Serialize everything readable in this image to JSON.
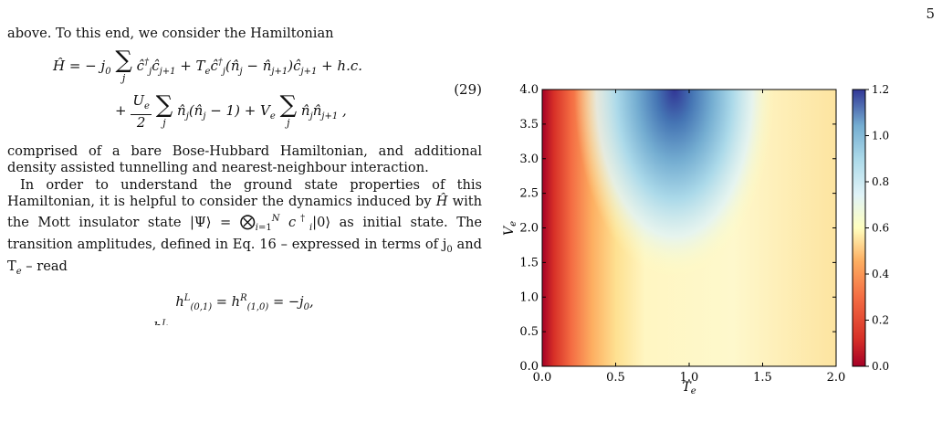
{
  "page_number": "5",
  "text": {
    "intro": "above. To this end, we consider the Hamiltonian",
    "eq_number": "(29)",
    "para1": "comprised of a bare Bose-Hubbard Hamiltonian, and additional density assisted tunnelling and nearest-neighbour interaction.",
    "para2_start": "In order to understand the ground state properties of this Hamiltonian, it is helpful to consider the dynamics induced by",
    "para2_mid": "with the Mott insulator state |Ψ⟩ =",
    "para2_end": "as initial state. The transition amplitudes, defined in Eq. 16 – expressed in terms of j",
    "para2_tail": "and T",
    "para2_read": "– read"
  },
  "chart_data": {
    "type": "heatmap",
    "xlabel": "T_e",
    "ylabel": "V_e",
    "xlim": [
      0.0,
      2.0
    ],
    "ylim": [
      0.0,
      4.0
    ],
    "x_ticks": [
      "0.0",
      "0.5",
      "1.0",
      "1.5",
      "2.0"
    ],
    "y_ticks": [
      "0.0",
      "0.5",
      "1.0",
      "1.5",
      "2.0",
      "2.5",
      "3.0",
      "3.5",
      "4.0"
    ],
    "colorbar": {
      "min": 0.0,
      "max": 1.2,
      "ticks": [
        "0.0",
        "0.2",
        "0.4",
        "0.6",
        "0.8",
        "1.0",
        "1.2"
      ],
      "colormap": "RdYlBu"
    },
    "features": {
      "max_value": 1.2,
      "max_location": [
        0.9,
        3.9
      ],
      "min_value": 0.0,
      "min_location": [
        0.0,
        0.0
      ]
    }
  }
}
